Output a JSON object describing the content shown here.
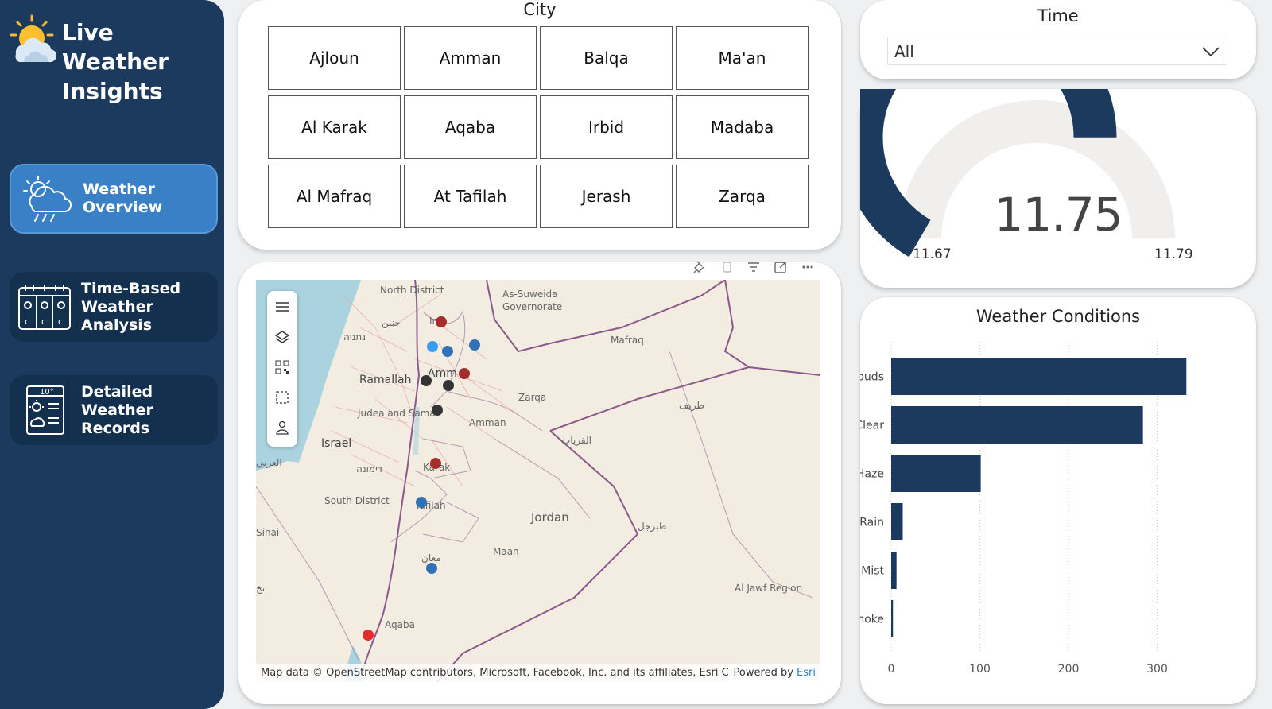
{
  "sidebar": {
    "brand_title_line1": "Live Weather",
    "brand_title_line2": "Insights",
    "nav": [
      {
        "line1": "Weather Overview",
        "line2": ""
      },
      {
        "line1": "Time-Based",
        "line2": "Weather Analysis"
      },
      {
        "line1": "Detailed Weather",
        "line2": "Records"
      }
    ]
  },
  "city_slicer": {
    "title": "City",
    "cities": [
      "Ajloun",
      "Amman",
      "Balqa",
      "Ma'an",
      "Al Karak",
      "Aqaba",
      "Irbid",
      "Madaba",
      "Al Mafraq",
      "At Tafilah",
      "Jerash",
      "Zarqa"
    ]
  },
  "time_slicer": {
    "title": "Time",
    "selected": "All"
  },
  "gauge": {
    "value": "11.75",
    "min": "11.67",
    "max": "11.79",
    "value_num": 11.75,
    "min_num": 11.67,
    "max_num": 11.79,
    "fill_color": "#1c3a5e",
    "track_color": "#f0efed"
  },
  "map": {
    "labels": {
      "north_district": "North District",
      "as_suweida": "As-Suweida",
      "governorate": "Governorate",
      "mafraq": "Mafraq",
      "irbid": "Ir",
      "ramallah": "Ramallah",
      "amman_short": "Amm",
      "zarqa": "Zarqa",
      "judea": "Judea and Sama",
      "amman": "Amman",
      "israel": "Israel",
      "karak": "Karak",
      "south_district": "South District",
      "tafilah": "Tafilah",
      "jordan": "Jordan",
      "sinai": "Sinai",
      "maan": "Maan",
      "aqaba": "Aqaba",
      "al_jawf": "Al Jawf Region",
      "tarif": "طريف",
      "qurayyat": "القريات",
      "tabarjal": "طبرجل",
      "maan_ar": "معان",
      "jenin": "جنين",
      "netanya": "נתניה",
      "dimona": "דימונה",
      "arab": "العربي",
      "nkh": "نخ"
    },
    "credit": "Map data © OpenStreetMap contributors, Microsoft, Facebook, Inc. and its affiliates, Esri C...",
    "powered_by": "Powered by",
    "esri": "Esri",
    "dot_colors": {
      "red": "#a72d2d",
      "blue": "#2f72b8",
      "lightblue": "#3a9cf0",
      "dark": "#333333",
      "bright_red": "#e8292b"
    }
  },
  "chart_data": {
    "type": "bar",
    "title": "Weather Conditions",
    "categories": [
      "Clouds",
      "Clear",
      "Haze",
      "Rain",
      "Mist",
      "Smoke"
    ],
    "values": [
      333,
      284,
      101,
      13,
      6,
      2
    ],
    "xlim": [
      0,
      330
    ],
    "xticks": [
      "0",
      "100",
      "200",
      "300"
    ],
    "xtick_values": [
      0,
      100,
      200,
      300
    ],
    "orientation": "horizontal",
    "grid": true,
    "bar_color": "#1c3a5e"
  }
}
